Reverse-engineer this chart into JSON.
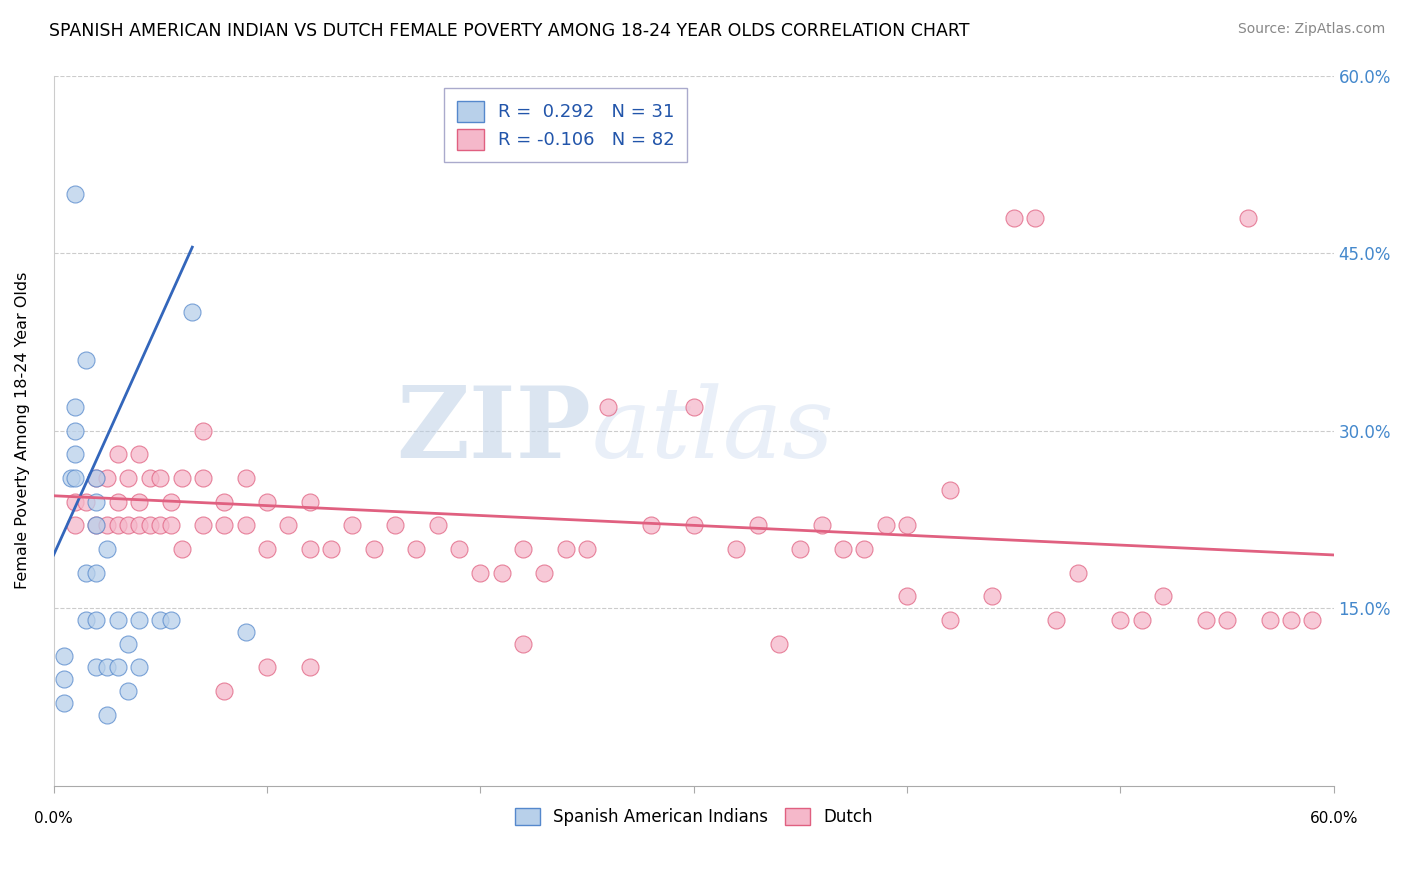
{
  "title": "SPANISH AMERICAN INDIAN VS DUTCH FEMALE POVERTY AMONG 18-24 YEAR OLDS CORRELATION CHART",
  "source": "Source: ZipAtlas.com",
  "ylabel": "Female Poverty Among 18-24 Year Olds",
  "xlim": [
    0,
    0.6
  ],
  "ylim": [
    0,
    0.6
  ],
  "xticks": [
    0.0,
    0.1,
    0.2,
    0.3,
    0.4,
    0.5,
    0.6
  ],
  "yticks_right": [
    0.15,
    0.3,
    0.45,
    0.6
  ],
  "ytick_right_labels": [
    "15.0%",
    "30.0%",
    "45.0%",
    "60.0%"
  ],
  "blue_R": 0.292,
  "blue_N": 31,
  "pink_R": -0.106,
  "pink_N": 82,
  "blue_color": "#b8d0ea",
  "pink_color": "#f5b8ca",
  "blue_edge": "#5588cc",
  "pink_edge": "#e06080",
  "trend_blue": "#3366bb",
  "trend_pink": "#e06080",
  "legend_label_blue": "Spanish American Indians",
  "legend_label_pink": "Dutch",
  "blue_scatter_x": [
    0.005,
    0.005,
    0.005,
    0.008,
    0.01,
    0.01,
    0.01,
    0.01,
    0.01,
    0.015,
    0.015,
    0.015,
    0.02,
    0.02,
    0.02,
    0.02,
    0.02,
    0.02,
    0.025,
    0.025,
    0.025,
    0.03,
    0.03,
    0.035,
    0.035,
    0.04,
    0.04,
    0.05,
    0.055,
    0.065,
    0.09
  ],
  "blue_scatter_y": [
    0.07,
    0.09,
    0.11,
    0.26,
    0.26,
    0.28,
    0.3,
    0.32,
    0.5,
    0.14,
    0.18,
    0.36,
    0.1,
    0.14,
    0.18,
    0.22,
    0.24,
    0.26,
    0.06,
    0.1,
    0.2,
    0.1,
    0.14,
    0.08,
    0.12,
    0.1,
    0.14,
    0.14,
    0.14,
    0.4,
    0.13
  ],
  "pink_scatter_x": [
    0.01,
    0.01,
    0.015,
    0.02,
    0.02,
    0.025,
    0.025,
    0.03,
    0.03,
    0.03,
    0.035,
    0.035,
    0.04,
    0.04,
    0.04,
    0.045,
    0.045,
    0.05,
    0.05,
    0.055,
    0.055,
    0.06,
    0.06,
    0.07,
    0.07,
    0.07,
    0.08,
    0.08,
    0.09,
    0.09,
    0.1,
    0.1,
    0.11,
    0.12,
    0.12,
    0.13,
    0.14,
    0.15,
    0.16,
    0.17,
    0.18,
    0.19,
    0.2,
    0.21,
    0.22,
    0.23,
    0.24,
    0.25,
    0.26,
    0.28,
    0.3,
    0.3,
    0.32,
    0.33,
    0.34,
    0.35,
    0.36,
    0.37,
    0.38,
    0.39,
    0.4,
    0.42,
    0.44,
    0.45,
    0.46,
    0.47,
    0.48,
    0.5,
    0.51,
    0.52,
    0.54,
    0.55,
    0.56,
    0.57,
    0.58,
    0.59,
    0.4,
    0.42,
    0.22,
    0.12,
    0.1,
    0.08
  ],
  "pink_scatter_y": [
    0.22,
    0.24,
    0.24,
    0.22,
    0.26,
    0.22,
    0.26,
    0.22,
    0.24,
    0.28,
    0.22,
    0.26,
    0.22,
    0.24,
    0.28,
    0.22,
    0.26,
    0.22,
    0.26,
    0.22,
    0.24,
    0.2,
    0.26,
    0.22,
    0.26,
    0.3,
    0.22,
    0.24,
    0.22,
    0.26,
    0.2,
    0.24,
    0.22,
    0.2,
    0.24,
    0.2,
    0.22,
    0.2,
    0.22,
    0.2,
    0.22,
    0.2,
    0.18,
    0.18,
    0.2,
    0.18,
    0.2,
    0.2,
    0.32,
    0.22,
    0.22,
    0.32,
    0.2,
    0.22,
    0.12,
    0.2,
    0.22,
    0.2,
    0.2,
    0.22,
    0.16,
    0.14,
    0.16,
    0.48,
    0.48,
    0.14,
    0.18,
    0.14,
    0.14,
    0.16,
    0.14,
    0.14,
    0.48,
    0.14,
    0.14,
    0.14,
    0.22,
    0.25,
    0.12,
    0.1,
    0.1,
    0.08
  ],
  "watermark_zip": "ZIP",
  "watermark_atlas": "atlas",
  "background_color": "#ffffff",
  "grid_color": "#cccccc",
  "blue_trend_x": [
    0.0,
    0.1
  ],
  "blue_trend_y_start": 0.18,
  "blue_trend_slope": 2.5,
  "pink_trend_x_start": 0.0,
  "pink_trend_x_end": 0.6,
  "pink_trend_y_start": 0.245,
  "pink_trend_y_end": 0.195
}
